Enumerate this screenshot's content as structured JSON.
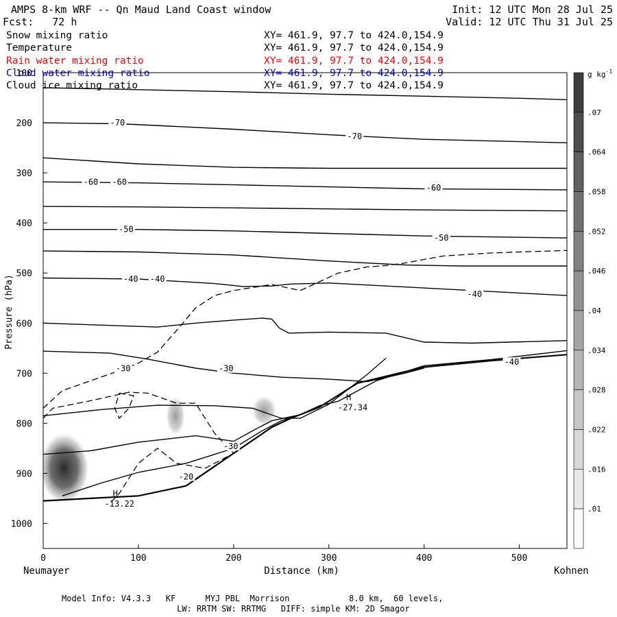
{
  "header": {
    "title": "AMPS 8-km WRF -- Qn Maud Land Coast window",
    "forecast": "Fcst:   72 h",
    "init": "Init: 12 UTC Mon 28 Jul 25",
    "valid": "Valid: 12 UTC Thu 31 Jul 25"
  },
  "fields": [
    {
      "name": "Snow mixing ratio",
      "xy": "XY= 461.9, 97.7 to 424.0,154.9",
      "color": "#000000"
    },
    {
      "name": "Temperature",
      "xy": "XY= 461.9, 97.7 to 424.0,154.9",
      "color": "#000000"
    },
    {
      "name": "Rain water mixing ratio",
      "xy": "XY= 461.9, 97.7 to 424.0,154.9",
      "color": "#ff0000"
    },
    {
      "name": "Cloud water mixing ratio",
      "xy": "XY= 461.9, 97.7 to 424.0,154.9",
      "color": "#0000cc"
    },
    {
      "name": "Cloud ice mixing ratio",
      "xy": "XY= 461.9, 97.7 to 424.0,154.9",
      "color": "#000000"
    }
  ],
  "footer": {
    "line1": "Model Info: V4.3.3   KF      MYJ PBL  Morrison            8.0 km,  60 levels,",
    "line2": "LW: RRTM SW: RRTMG   DIFF: simple KM: 2D Smagor"
  },
  "chart_data": {
    "type": "contour",
    "xlabel": "Distance (km)",
    "ylabel": "Pressure (hPa)",
    "x_start_label": "Neumayer",
    "x_end_label": "Kohnen",
    "xlim": [
      0,
      550
    ],
    "ylim": [
      1050,
      100
    ],
    "x_ticks": [
      0,
      100,
      200,
      300,
      400,
      500
    ],
    "y_ticks": [
      100,
      200,
      300,
      400,
      500,
      600,
      700,
      800,
      900,
      1000
    ],
    "colorbar": {
      "unit": "g kg",
      "unit_exp": "-1",
      "ticks": [
        ".07",
        ".064",
        ".058",
        ".052",
        ".046",
        ".04",
        ".034",
        ".028",
        ".022",
        ".016",
        ".01"
      ]
    },
    "temperature_labels": [
      {
        "text": "-70",
        "x": 78,
        "p": 200
      },
      {
        "text": "-70",
        "x": 327,
        "p": 227
      },
      {
        "text": "-60",
        "x": 50,
        "p": 318
      },
      {
        "text": "-60",
        "x": 80,
        "p": 318
      },
      {
        "text": "-60",
        "x": 410,
        "p": 330
      },
      {
        "text": "-50",
        "x": 87,
        "p": 413
      },
      {
        "text": "-50",
        "x": 418,
        "p": 430
      },
      {
        "text": "-40",
        "x": 92,
        "p": 512
      },
      {
        "text": "-40",
        "x": 120,
        "p": 512
      },
      {
        "text": "-40",
        "x": 453,
        "p": 542
      },
      {
        "text": "-40",
        "x": 492,
        "p": 678
      },
      {
        "text": "-30",
        "x": 84,
        "p": 691
      },
      {
        "text": "-30",
        "x": 192,
        "p": 691
      },
      {
        "text": "-30",
        "x": 197,
        "p": 846
      },
      {
        "text": "-20",
        "x": 150,
        "p": 907
      }
    ],
    "highs": [
      {
        "label": "H",
        "value": "-13.22",
        "x": 70,
        "p": 950
      },
      {
        "label": "H",
        "value": "-27.34",
        "x": 315,
        "p": 758
      }
    ],
    "temperature_contours": [
      [
        [
          0,
          130
        ],
        [
          100,
          134
        ],
        [
          200,
          138
        ],
        [
          300,
          143
        ],
        [
          400,
          147
        ],
        [
          500,
          151
        ],
        [
          550,
          154
        ]
      ],
      [
        [
          0,
          200
        ],
        [
          80,
          202
        ],
        [
          200,
          213
        ],
        [
          300,
          224
        ],
        [
          400,
          233
        ],
        [
          550,
          240
        ]
      ],
      [
        [
          0,
          270
        ],
        [
          100,
          282
        ],
        [
          200,
          289
        ],
        [
          300,
          291
        ],
        [
          400,
          291
        ],
        [
          550,
          291
        ]
      ],
      [
        [
          0,
          318
        ],
        [
          100,
          320
        ],
        [
          200,
          324
        ],
        [
          300,
          328
        ],
        [
          400,
          332
        ],
        [
          550,
          334
        ]
      ],
      [
        [
          0,
          367
        ],
        [
          100,
          368
        ],
        [
          200,
          370
        ],
        [
          300,
          372
        ],
        [
          400,
          374
        ],
        [
          550,
          376
        ]
      ],
      [
        [
          0,
          413
        ],
        [
          100,
          413
        ],
        [
          200,
          416
        ],
        [
          300,
          421
        ],
        [
          400,
          426
        ],
        [
          550,
          430
        ]
      ],
      [
        [
          0,
          456
        ],
        [
          100,
          458
        ],
        [
          200,
          464
        ],
        [
          300,
          476
        ],
        [
          380,
          484
        ],
        [
          440,
          486
        ],
        [
          550,
          486
        ]
      ],
      [
        [
          0,
          510
        ],
        [
          100,
          512
        ],
        [
          180,
          521
        ],
        [
          210,
          527
        ],
        [
          240,
          526
        ],
        [
          260,
          522
        ],
        [
          300,
          520
        ],
        [
          400,
          530
        ],
        [
          550,
          545
        ]
      ],
      [
        [
          0,
          600
        ],
        [
          60,
          604
        ],
        [
          120,
          608
        ],
        [
          160,
          600
        ],
        [
          200,
          594
        ],
        [
          230,
          590
        ],
        [
          240,
          592
        ],
        [
          248,
          610
        ],
        [
          258,
          620
        ],
        [
          300,
          618
        ],
        [
          360,
          620
        ],
        [
          400,
          638
        ],
        [
          450,
          640
        ],
        [
          550,
          635
        ]
      ],
      [
        [
          0,
          656
        ],
        [
          70,
          660
        ],
        [
          110,
          672
        ],
        [
          160,
          690
        ],
        [
          200,
          700
        ],
        [
          250,
          708
        ],
        [
          300,
          712
        ],
        [
          340,
          717
        ],
        [
          380,
          700
        ],
        [
          400,
          690
        ]
      ],
      [
        [
          0,
          785
        ],
        [
          60,
          773
        ],
        [
          120,
          764
        ],
        [
          180,
          765
        ],
        [
          220,
          770
        ],
        [
          250,
          790
        ],
        [
          270,
          790
        ],
        [
          300,
          762
        ],
        [
          340,
          703
        ],
        [
          360,
          670
        ]
      ],
      [
        [
          0,
          862
        ],
        [
          50,
          855
        ],
        [
          100,
          838
        ],
        [
          160,
          825
        ],
        [
          200,
          836
        ],
        [
          220,
          815
        ],
        [
          240,
          795
        ],
        [
          270,
          783
        ],
        [
          290,
          765
        ],
        [
          310,
          756
        ],
        [
          350,
          715
        ],
        [
          400,
          685
        ],
        [
          470,
          673
        ],
        [
          550,
          655
        ]
      ],
      [
        [
          20,
          945
        ],
        [
          60,
          920
        ],
        [
          100,
          898
        ],
        [
          150,
          880
        ],
        [
          175,
          865
        ],
        [
          200,
          850
        ],
        [
          230,
          815
        ],
        [
          250,
          795
        ],
        [
          270,
          783
        ]
      ],
      [
        [
          0,
          955
        ],
        [
          50,
          950
        ],
        [
          100,
          945
        ],
        [
          150,
          925
        ],
        [
          200,
          860
        ],
        [
          240,
          808
        ],
        [
          260,
          790
        ],
        [
          290,
          768
        ],
        [
          330,
          720
        ],
        [
          400,
          688
        ],
        [
          470,
          675
        ],
        [
          550,
          663
        ]
      ]
    ],
    "dashed_contours": [
      [
        [
          0,
          770
        ],
        [
          20,
          735
        ],
        [
          50,
          715
        ],
        [
          80,
          695
        ],
        [
          100,
          680
        ],
        [
          120,
          658
        ],
        [
          140,
          615
        ],
        [
          160,
          570
        ],
        [
          180,
          545
        ],
        [
          200,
          535
        ],
        [
          240,
          523
        ],
        [
          270,
          535
        ],
        [
          310,
          500
        ],
        [
          340,
          488
        ],
        [
          360,
          485
        ],
        [
          380,
          480
        ],
        [
          420,
          466
        ],
        [
          470,
          460
        ],
        [
          550,
          455
        ]
      ],
      [
        [
          0,
          790
        ],
        [
          10,
          770
        ],
        [
          50,
          755
        ],
        [
          90,
          738
        ],
        [
          110,
          740
        ],
        [
          140,
          760
        ],
        [
          160,
          760
        ],
        [
          180,
          820
        ],
        [
          200,
          860
        ],
        [
          170,
          890
        ],
        [
          140,
          880
        ],
        [
          120,
          850
        ],
        [
          100,
          880
        ],
        [
          80,
          940
        ],
        [
          70,
          960
        ]
      ],
      [
        [
          80,
          740
        ],
        [
          95,
          745
        ],
        [
          90,
          770
        ],
        [
          80,
          790
        ],
        [
          75,
          770
        ],
        [
          80,
          740
        ]
      ]
    ],
    "shaded_cores": [
      {
        "x": 22,
        "p": 890,
        "rx": 26,
        "rp": 70,
        "max": 0.07
      },
      {
        "x": 139,
        "p": 785,
        "rx": 10,
        "rp": 40,
        "max": 0.03
      },
      {
        "x": 232,
        "p": 775,
        "rx": 13,
        "rp": 30,
        "max": 0.035
      }
    ]
  }
}
